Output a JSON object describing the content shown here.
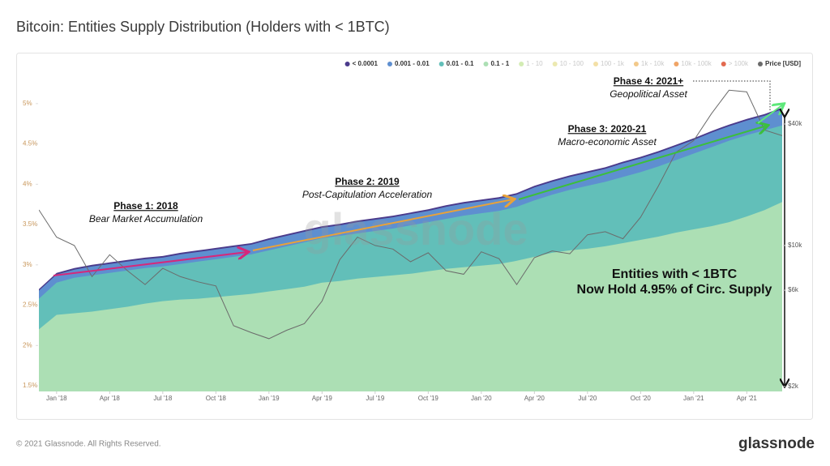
{
  "chart_data": {
    "type": "stacked-area",
    "title": "Bitcoin: Entities Supply Distribution (Holders with < 1BTC)",
    "x": [
      "2017-12",
      "2018-01",
      "2018-02",
      "2018-03",
      "2018-04",
      "2018-05",
      "2018-06",
      "2018-07",
      "2018-08",
      "2018-09",
      "2018-10",
      "2018-11",
      "2018-12",
      "2019-01",
      "2019-02",
      "2019-03",
      "2019-04",
      "2019-05",
      "2019-06",
      "2019-07",
      "2019-08",
      "2019-09",
      "2019-10",
      "2019-11",
      "2019-12",
      "2020-01",
      "2020-02",
      "2020-03",
      "2020-04",
      "2020-05",
      "2020-06",
      "2020-07",
      "2020-08",
      "2020-09",
      "2020-10",
      "2020-11",
      "2020-12",
      "2021-01",
      "2021-02",
      "2021-03",
      "2021-04",
      "2021-05",
      "2021-06"
    ],
    "xlim": [
      "2017-12",
      "2021-06"
    ],
    "xticks": [
      {
        "value": "2018-01",
        "label": "Jan '18"
      },
      {
        "value": "2018-04",
        "label": "Apr '18"
      },
      {
        "value": "2018-07",
        "label": "Jul '18"
      },
      {
        "value": "2018-10",
        "label": "Oct '18"
      },
      {
        "value": "2019-01",
        "label": "Jan '19"
      },
      {
        "value": "2019-04",
        "label": "Apr '19"
      },
      {
        "value": "2019-07",
        "label": "Jul '19"
      },
      {
        "value": "2019-10",
        "label": "Oct '19"
      },
      {
        "value": "2020-01",
        "label": "Jan '20"
      },
      {
        "value": "2020-04",
        "label": "Apr '20"
      },
      {
        "value": "2020-07",
        "label": "Jul '20"
      },
      {
        "value": "2020-10",
        "label": "Oct '20"
      },
      {
        "value": "2021-01",
        "label": "Jan '21"
      },
      {
        "value": "2021-04",
        "label": "Apr '21"
      }
    ],
    "ylim": [
      1.43,
      5.28
    ],
    "yticks": [
      {
        "value": 1.5,
        "label": "1.5%"
      },
      {
        "value": 2,
        "label": "2%"
      },
      {
        "value": 2.5,
        "label": "2.5%"
      },
      {
        "value": 3,
        "label": "3%"
      },
      {
        "value": 3.5,
        "label": "3.5%"
      },
      {
        "value": 4,
        "label": "4%"
      },
      {
        "value": 4.5,
        "label": "4.5%"
      },
      {
        "value": 5,
        "label": "5%"
      }
    ],
    "y2lim": [
      1890,
      65300
    ],
    "y2log": true,
    "y2ticks": [
      {
        "value": 2000,
        "label": "$2k"
      },
      {
        "value": 6000,
        "label": "$6k"
      },
      {
        "value": 10000,
        "label": "$10k"
      },
      {
        "value": 40000,
        "label": "$40k"
      }
    ],
    "grid": false,
    "series": [
      {
        "name": "< 0.0001",
        "color": "#4b3b8c",
        "values": [
          0.02,
          0.02,
          0.02,
          0.02,
          0.02,
          0.02,
          0.02,
          0.02,
          0.02,
          0.02,
          0.02,
          0.02,
          0.02,
          0.02,
          0.02,
          0.02,
          0.02,
          0.02,
          0.02,
          0.02,
          0.02,
          0.02,
          0.02,
          0.02,
          0.02,
          0.02,
          0.02,
          0.02,
          0.02,
          0.02,
          0.02,
          0.02,
          0.02,
          0.02,
          0.02,
          0.02,
          0.02,
          0.02,
          0.02,
          0.02,
          0.02,
          0.02,
          0.02
        ]
      },
      {
        "name": "0.001 - 0.01",
        "color": "#5e8fd0",
        "values": [
          0.1,
          0.1,
          0.1,
          0.11,
          0.11,
          0.11,
          0.11,
          0.11,
          0.12,
          0.12,
          0.12,
          0.12,
          0.12,
          0.13,
          0.13,
          0.13,
          0.13,
          0.13,
          0.14,
          0.14,
          0.14,
          0.14,
          0.14,
          0.15,
          0.15,
          0.15,
          0.15,
          0.15,
          0.16,
          0.16,
          0.16,
          0.16,
          0.16,
          0.17,
          0.17,
          0.17,
          0.17,
          0.17,
          0.18,
          0.18,
          0.18,
          0.18,
          0.2
        ]
      },
      {
        "name": "0.01 - 0.1",
        "color": "#62bfb9",
        "values": [
          0.38,
          0.4,
          0.44,
          0.45,
          0.45,
          0.45,
          0.44,
          0.43,
          0.44,
          0.46,
          0.47,
          0.48,
          0.49,
          0.51,
          0.53,
          0.55,
          0.55,
          0.56,
          0.56,
          0.57,
          0.58,
          0.6,
          0.61,
          0.62,
          0.64,
          0.65,
          0.66,
          0.67,
          0.7,
          0.72,
          0.75,
          0.78,
          0.8,
          0.82,
          0.84,
          0.87,
          0.9,
          0.94,
          0.98,
          1.01,
          1.01,
          0.99,
          0.95
        ]
      },
      {
        "name": "0.1 - 1",
        "color": "#acdfb4",
        "values": [
          2.2,
          2.38,
          2.4,
          2.42,
          2.45,
          2.48,
          2.52,
          2.55,
          2.57,
          2.58,
          2.6,
          2.62,
          2.64,
          2.67,
          2.7,
          2.73,
          2.78,
          2.8,
          2.83,
          2.85,
          2.87,
          2.89,
          2.92,
          2.95,
          2.97,
          2.99,
          3.01,
          3.05,
          3.1,
          3.15,
          3.18,
          3.2,
          3.23,
          3.27,
          3.31,
          3.35,
          3.4,
          3.44,
          3.48,
          3.53,
          3.6,
          3.68,
          3.78
        ]
      },
      {
        "name": "Price [USD]",
        "color": "#6b6b6b",
        "axis": "y2",
        "values": [
          15000,
          11000,
          10000,
          7000,
          9000,
          7500,
          6400,
          7700,
          7000,
          6600,
          6300,
          4000,
          3700,
          3450,
          3800,
          4100,
          5300,
          8500,
          11000,
          10000,
          9600,
          8300,
          9200,
          7500,
          7200,
          9300,
          8600,
          6400,
          8700,
          9400,
          9100,
          11300,
          11700,
          10800,
          13800,
          19700,
          29000,
          33100,
          45000,
          58800,
          57700,
          37300,
          35000
        ]
      }
    ],
    "legend_inactive": [
      {
        "name": "1 - 10",
        "color": "#d3ecb4"
      },
      {
        "name": "10 - 100",
        "color": "#ece9b0"
      },
      {
        "name": "100 - 1k",
        "color": "#f3e0a6"
      },
      {
        "name": "1k - 10k",
        "color": "#f2c98a"
      },
      {
        "name": "10k - 100k",
        "color": "#f0a466"
      },
      {
        "name": "> 100k",
        "color": "#e26a50"
      }
    ],
    "watermark": "glassnode",
    "annotations": [
      {
        "title": "Phase 1: 2018",
        "text": "Bear Market Accumulation"
      },
      {
        "title": "Phase 2: 2019",
        "text": "Post-Capitulation Acceleration"
      },
      {
        "title": "Phase 3: 2020-21",
        "text": "Macro-economic Asset"
      },
      {
        "title": "Phase 4: 2021+",
        "text": "Geopolitical Asset"
      }
    ],
    "callout": [
      "Entities with < 1BTC",
      "Now Hold 4.95% of Circ. Supply"
    ]
  },
  "footer": {
    "copyright": "© 2021 Glassnode. All Rights Reserved.",
    "logo": "glassnode"
  }
}
